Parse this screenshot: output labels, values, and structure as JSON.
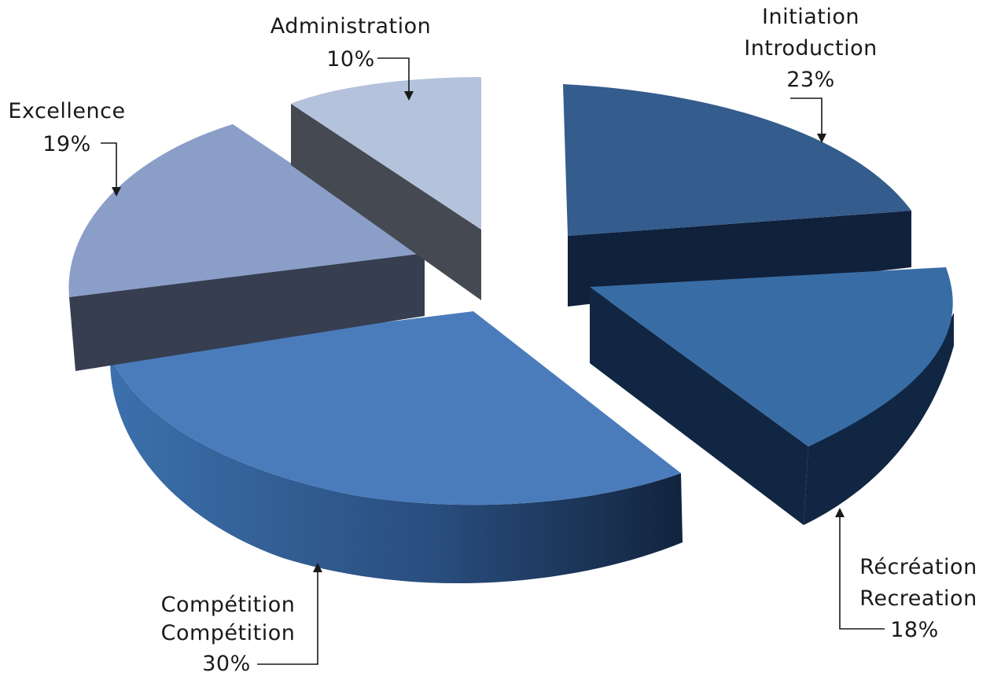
{
  "chart_data": {
    "type": "pie",
    "title": "",
    "style": "3d-exploded",
    "slices": [
      {
        "lines": [
          "Initiation",
          "Introduction"
        ],
        "value": 23,
        "value_label": "23%",
        "color": "#345c8c",
        "side_color": "#10213c"
      },
      {
        "lines": [
          "Récréation",
          "Recreation"
        ],
        "value": 18,
        "value_label": "18%",
        "color": "#386ca4",
        "side_color": "#112642"
      },
      {
        "lines": [
          "Compétition",
          "Compétition"
        ],
        "value": 30,
        "value_label": "30%",
        "color": "#4a7cbc",
        "side_color": "#2e5a8e"
      },
      {
        "lines": [
          "Excellence"
        ],
        "value": 19,
        "value_label": "19%",
        "color": "#8a9ec8",
        "side_color": "#363e50"
      },
      {
        "lines": [
          "Administration"
        ],
        "value": 10,
        "value_label": "10%",
        "color": "#b4c2dc",
        "side_color": "#454a52"
      }
    ]
  }
}
